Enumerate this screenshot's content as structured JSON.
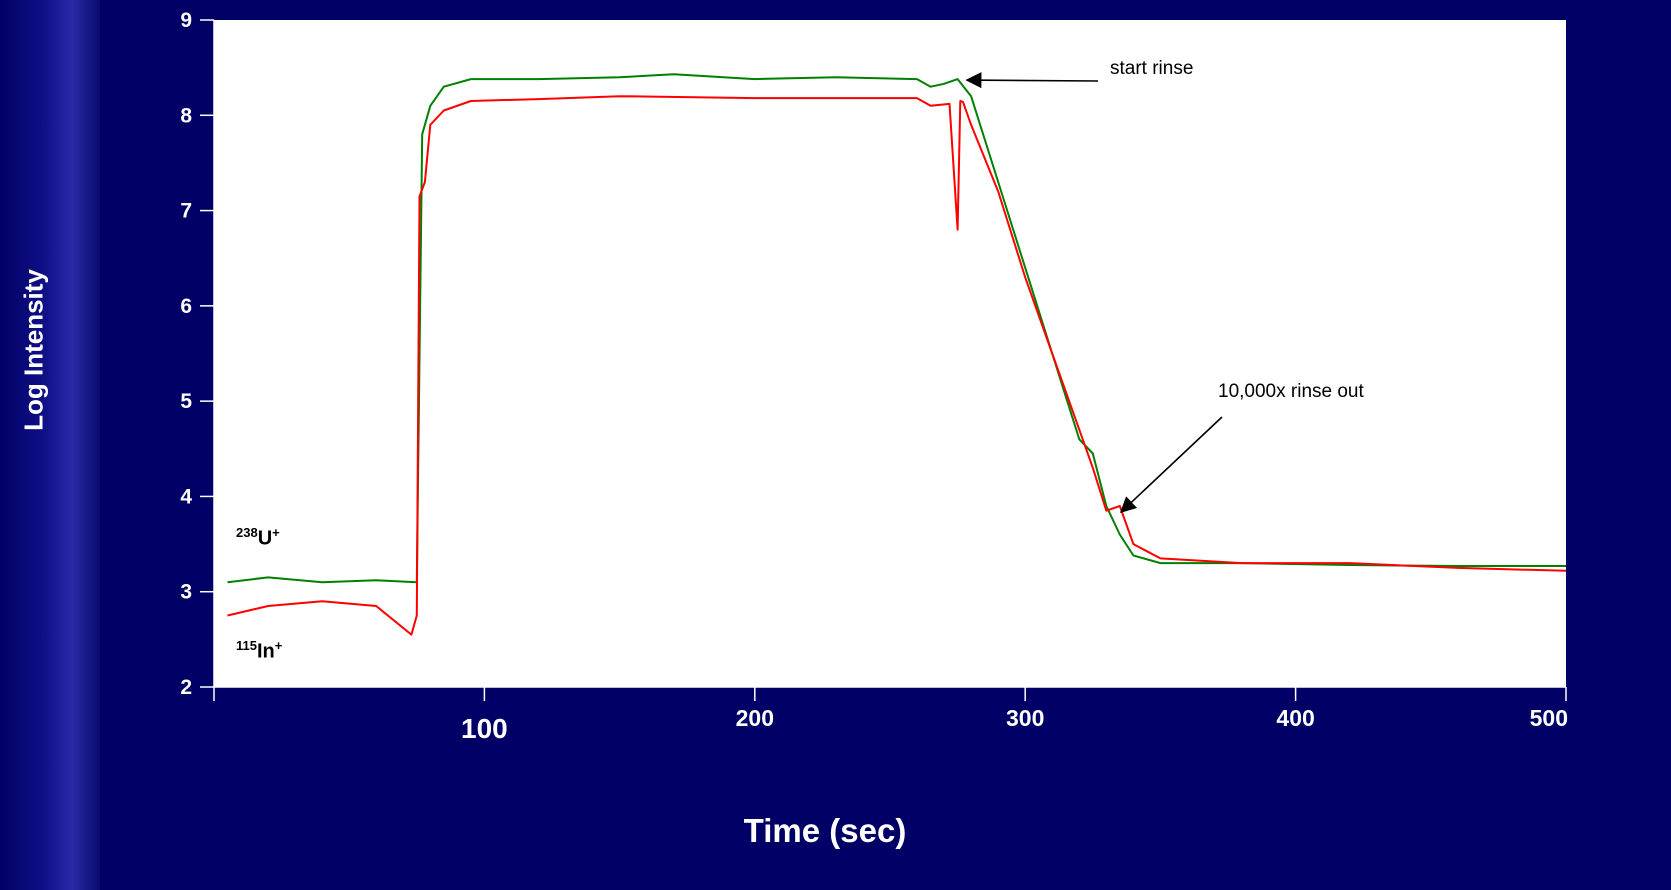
{
  "chart_data": {
    "type": "line",
    "xlabel": "Time (sec)",
    "ylabel": "Log Intensity",
    "xlim": [
      0,
      500
    ],
    "ylim": [
      2,
      9
    ],
    "x_ticks": [
      100,
      200,
      300,
      400,
      500
    ],
    "y_ticks": [
      2,
      3,
      4,
      5,
      6,
      7,
      8,
      9
    ],
    "series": [
      {
        "name": "238U+",
        "color": "#008000",
        "x": [
          5,
          20,
          40,
          60,
          75,
          77,
          80,
          85,
          95,
          120,
          150,
          170,
          200,
          230,
          260,
          265,
          270,
          275,
          280,
          290,
          300,
          310,
          320,
          325,
          330,
          335,
          340,
          350,
          380,
          420,
          460,
          500
        ],
        "y": [
          3.1,
          3.15,
          3.1,
          3.12,
          3.1,
          7.8,
          8.1,
          8.3,
          8.38,
          8.38,
          8.4,
          8.43,
          8.38,
          8.4,
          8.38,
          8.3,
          8.33,
          8.38,
          8.2,
          7.3,
          6.4,
          5.5,
          4.6,
          4.45,
          3.9,
          3.6,
          3.38,
          3.3,
          3.3,
          3.28,
          3.27,
          3.27
        ]
      },
      {
        "name": "115In+",
        "color": "#ff0000",
        "x": [
          5,
          20,
          40,
          60,
          73,
          75,
          76,
          78,
          80,
          85,
          95,
          120,
          150,
          200,
          240,
          260,
          265,
          272,
          275,
          276,
          277,
          280,
          290,
          300,
          310,
          320,
          325,
          330,
          335,
          340,
          350,
          380,
          420,
          460,
          500
        ],
        "y": [
          2.75,
          2.85,
          2.9,
          2.85,
          2.55,
          2.75,
          7.15,
          7.3,
          7.9,
          8.05,
          8.15,
          8.17,
          8.2,
          8.18,
          8.18,
          8.18,
          8.1,
          8.12,
          6.8,
          8.15,
          8.14,
          7.9,
          7.2,
          6.3,
          5.5,
          4.7,
          4.3,
          3.85,
          3.9,
          3.5,
          3.35,
          3.3,
          3.3,
          3.25,
          3.22
        ]
      }
    ],
    "series_labels": {
      "u": {
        "base": "U",
        "iso": "238",
        "charge": "+"
      },
      "in": {
        "base": "In",
        "iso": "115",
        "charge": "+"
      }
    },
    "annotations": [
      {
        "text": "start rinse",
        "x": 277,
        "y": 8.38
      },
      {
        "text": "10,000x  rinse out",
        "x": 334,
        "y": 3.9
      }
    ]
  }
}
